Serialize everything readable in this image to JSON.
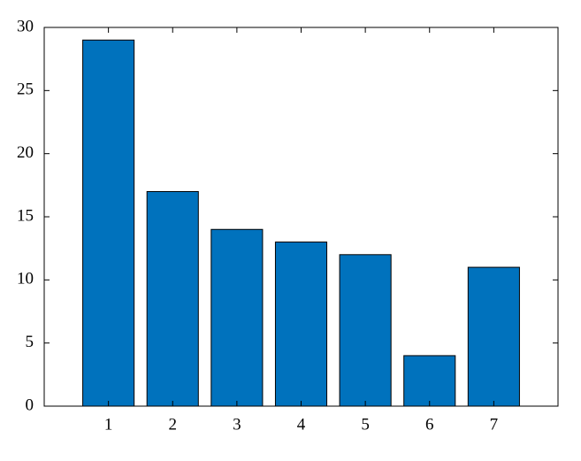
{
  "chart_data": {
    "type": "bar",
    "x": [
      1,
      2,
      3,
      4,
      5,
      6,
      7
    ],
    "values": [
      29,
      17,
      14,
      13,
      12,
      4,
      11
    ],
    "color": "#0072bd",
    "xlim": [
      0,
      8
    ],
    "xticks": [
      1,
      2,
      3,
      4,
      5,
      6,
      7
    ],
    "ylim": [
      0,
      30
    ],
    "yticks": [
      0,
      5,
      10,
      15,
      20,
      25,
      30
    ],
    "grid": false
  }
}
